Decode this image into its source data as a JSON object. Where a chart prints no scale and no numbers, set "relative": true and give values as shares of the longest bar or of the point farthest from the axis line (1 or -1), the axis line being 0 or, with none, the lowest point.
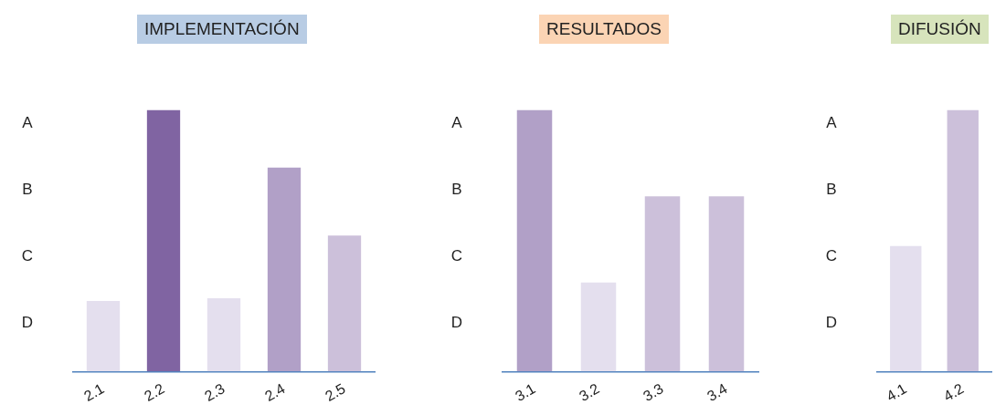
{
  "chart_data": [
    {
      "type": "bar",
      "title": "IMPLEMENTACIÓN",
      "categories": [
        "2.1",
        "2.2",
        "2.3",
        "2.4",
        "2.5"
      ],
      "values": [
        0.27,
        1,
        0.28,
        0.78,
        0.52
      ],
      "colors": [
        "#e4dfee",
        "#8064a2",
        "#e4dfee",
        "#b1a0c7",
        "#ccc0da"
      ],
      "relative": true,
      "annotations": [
        "A",
        "B",
        "C",
        "D"
      ]
    },
    {
      "type": "bar",
      "title": "RESULTADOS",
      "categories": [
        "3.1",
        "3.2",
        "3.3",
        "3.4"
      ],
      "values": [
        1,
        0.34,
        0.67,
        0.67
      ],
      "colors": [
        "#b1a0c7",
        "#e4dfee",
        "#ccc0da",
        "#ccc0da"
      ],
      "relative": true,
      "annotations": [
        "A",
        "B",
        "C",
        "D"
      ]
    },
    {
      "type": "bar",
      "title": "DIFUSIÓN",
      "categories": [
        "4.1",
        "4.2"
      ],
      "values": [
        0.48,
        1
      ],
      "colors": [
        "#e4dfee",
        "#ccc0da"
      ],
      "relative": true,
      "annotations": [
        "A",
        "B",
        "C",
        "D"
      ]
    }
  ]
}
